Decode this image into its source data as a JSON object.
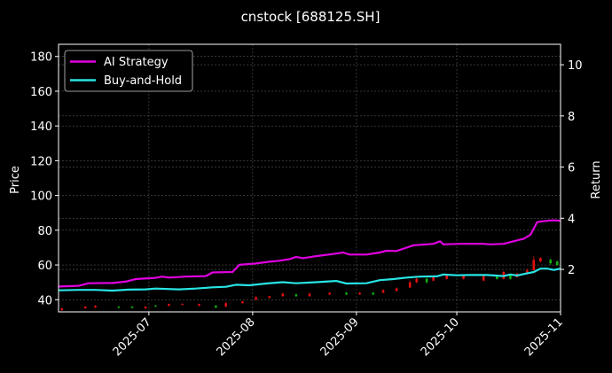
{
  "chart_data": {
    "type": "line",
    "title": "cnstock [688125.SH]",
    "xlabel": "",
    "ylabel": "Price",
    "ylabel_right": "Return",
    "x_tick_labels": [
      "2025-07",
      "2025-08",
      "2025-09",
      "2025-10",
      "2025-11"
    ],
    "x_ticks": [
      "2025-07-01",
      "2025-08-01",
      "2025-09-01",
      "2025-10-01",
      "2025-11-01"
    ],
    "xlim": [
      "2025-06-04",
      "2025-11-01"
    ],
    "ylim": [
      33,
      187
    ],
    "y_ticks": [
      40,
      60,
      80,
      100,
      120,
      140,
      160,
      180
    ],
    "y2lim": [
      0.34,
      10.8
    ],
    "y2_ticks": [
      2,
      4,
      6,
      8,
      10
    ],
    "grid": true,
    "legend_position": "upper-left",
    "colors": {
      "ai": "#e000e0",
      "bh": "#28e4e4",
      "up": "#e01010",
      "down": "#10b010",
      "grid": "#555555"
    },
    "series": [
      {
        "name": "AI Strategy",
        "axis": "right",
        "points": [
          [
            "2025-06-04",
            1.33
          ],
          [
            "2025-06-10",
            1.36
          ],
          [
            "2025-06-13",
            1.46
          ],
          [
            "2025-06-20",
            1.47
          ],
          [
            "2025-06-24",
            1.52
          ],
          [
            "2025-06-27",
            1.62
          ],
          [
            "2025-07-03",
            1.67
          ],
          [
            "2025-07-05",
            1.72
          ],
          [
            "2025-07-07",
            1.68
          ],
          [
            "2025-07-12",
            1.72
          ],
          [
            "2025-07-18",
            1.74
          ],
          [
            "2025-07-20",
            1.88
          ],
          [
            "2025-07-26",
            1.9
          ],
          [
            "2025-07-28",
            2.18
          ],
          [
            "2025-08-02",
            2.23
          ],
          [
            "2025-08-06",
            2.3
          ],
          [
            "2025-08-09",
            2.34
          ],
          [
            "2025-08-12",
            2.4
          ],
          [
            "2025-08-14",
            2.49
          ],
          [
            "2025-08-16",
            2.44
          ],
          [
            "2025-08-20",
            2.52
          ],
          [
            "2025-08-25",
            2.6
          ],
          [
            "2025-08-28",
            2.66
          ],
          [
            "2025-08-30",
            2.58
          ],
          [
            "2025-09-04",
            2.58
          ],
          [
            "2025-09-08",
            2.66
          ],
          [
            "2025-09-10",
            2.73
          ],
          [
            "2025-09-13",
            2.72
          ],
          [
            "2025-09-16",
            2.85
          ],
          [
            "2025-09-18",
            2.94
          ],
          [
            "2025-09-22",
            2.98
          ],
          [
            "2025-09-24",
            3.0
          ],
          [
            "2025-09-26",
            3.1
          ],
          [
            "2025-09-27",
            2.98
          ],
          [
            "2025-10-02",
            3.0
          ],
          [
            "2025-10-09",
            3.0
          ],
          [
            "2025-10-11",
            2.98
          ],
          [
            "2025-10-15",
            3.0
          ],
          [
            "2025-10-18",
            3.1
          ],
          [
            "2025-10-21",
            3.2
          ],
          [
            "2025-10-23",
            3.35
          ],
          [
            "2025-10-25",
            3.85
          ],
          [
            "2025-10-28",
            3.9
          ],
          [
            "2025-10-30",
            3.92
          ],
          [
            "2025-11-01",
            3.9
          ]
        ]
      },
      {
        "name": "Buy-and-Hold",
        "axis": "right",
        "points": [
          [
            "2025-06-04",
            1.18
          ],
          [
            "2025-06-10",
            1.2
          ],
          [
            "2025-06-15",
            1.2
          ],
          [
            "2025-06-20",
            1.17
          ],
          [
            "2025-06-25",
            1.21
          ],
          [
            "2025-06-30",
            1.22
          ],
          [
            "2025-07-03",
            1.25
          ],
          [
            "2025-07-10",
            1.22
          ],
          [
            "2025-07-15",
            1.25
          ],
          [
            "2025-07-20",
            1.3
          ],
          [
            "2025-07-24",
            1.32
          ],
          [
            "2025-07-27",
            1.4
          ],
          [
            "2025-07-31",
            1.38
          ],
          [
            "2025-08-05",
            1.45
          ],
          [
            "2025-08-10",
            1.5
          ],
          [
            "2025-08-14",
            1.46
          ],
          [
            "2025-08-20",
            1.5
          ],
          [
            "2025-08-26",
            1.55
          ],
          [
            "2025-08-29",
            1.45
          ],
          [
            "2025-09-04",
            1.46
          ],
          [
            "2025-09-08",
            1.58
          ],
          [
            "2025-09-12",
            1.62
          ],
          [
            "2025-09-16",
            1.68
          ],
          [
            "2025-09-20",
            1.72
          ],
          [
            "2025-09-25",
            1.73
          ],
          [
            "2025-09-27",
            1.8
          ],
          [
            "2025-10-01",
            1.77
          ],
          [
            "2025-10-05",
            1.78
          ],
          [
            "2025-10-10",
            1.78
          ],
          [
            "2025-10-15",
            1.74
          ],
          [
            "2025-10-17",
            1.8
          ],
          [
            "2025-10-19",
            1.76
          ],
          [
            "2025-10-21",
            1.82
          ],
          [
            "2025-10-24",
            1.9
          ],
          [
            "2025-10-26",
            2.03
          ],
          [
            "2025-10-28",
            2.03
          ],
          [
            "2025-10-30",
            1.98
          ],
          [
            "2025-11-01",
            2.03
          ]
        ]
      }
    ],
    "candles": [
      [
        "2025-06-05",
        34,
        35,
        33.5,
        35.2
      ],
      [
        "2025-06-12",
        35,
        36,
        34.8,
        36.3
      ],
      [
        "2025-06-15",
        35.5,
        36.5,
        35.2,
        36.8
      ],
      [
        "2025-06-22",
        36,
        35.4,
        35,
        36.3
      ],
      [
        "2025-06-26",
        36,
        35.3,
        35,
        36.2
      ],
      [
        "2025-06-30",
        35,
        36,
        34.8,
        36.2
      ],
      [
        "2025-07-03",
        36.5,
        36,
        35.8,
        37
      ],
      [
        "2025-07-07",
        36.5,
        37.5,
        36.2,
        37.8
      ],
      [
        "2025-07-11",
        37,
        37.5,
        36.8,
        38
      ],
      [
        "2025-07-16",
        36.5,
        37.5,
        36.3,
        37.7
      ],
      [
        "2025-07-21",
        36.5,
        35.5,
        35.2,
        37
      ],
      [
        "2025-07-24",
        36,
        38,
        35.8,
        38.5
      ],
      [
        "2025-07-29",
        38,
        39,
        37.8,
        39.3
      ],
      [
        "2025-08-02",
        40,
        41.5,
        39.8,
        42
      ],
      [
        "2025-08-06",
        41,
        42,
        40.8,
        42.3
      ],
      [
        "2025-08-10",
        42,
        43.5,
        41.8,
        44
      ],
      [
        "2025-08-14",
        43,
        42,
        41.6,
        43.5
      ],
      [
        "2025-08-18",
        42,
        43.5,
        41.8,
        44
      ],
      [
        "2025-08-24",
        43,
        44,
        42.8,
        44.3
      ],
      [
        "2025-08-29",
        44,
        43,
        42.6,
        44.5
      ],
      [
        "2025-09-02",
        43,
        44,
        42.8,
        44.3
      ],
      [
        "2025-09-06",
        44,
        43,
        42.6,
        44.5
      ],
      [
        "2025-09-09",
        44,
        45.5,
        43.8,
        46
      ],
      [
        "2025-09-13",
        45,
        46.5,
        44.8,
        47
      ],
      [
        "2025-09-17",
        47,
        50,
        46.6,
        51
      ],
      [
        "2025-09-19",
        50,
        52,
        49.6,
        53
      ],
      [
        "2025-09-22",
        52,
        50,
        49.5,
        52.6
      ],
      [
        "2025-09-24",
        51,
        53,
        50.6,
        54
      ],
      [
        "2025-09-28",
        52,
        54,
        51.6,
        54.5
      ],
      [
        "2025-10-03",
        52,
        54,
        51.6,
        54.5
      ],
      [
        "2025-10-09",
        51,
        54,
        50.6,
        54.5
      ],
      [
        "2025-10-13",
        54,
        52,
        51.6,
        54.5
      ],
      [
        "2025-10-15",
        52,
        56,
        51.6,
        56.5
      ],
      [
        "2025-10-17",
        54,
        52,
        51.6,
        54.5
      ],
      [
        "2025-10-19",
        53,
        55,
        52.6,
        55.5
      ],
      [
        "2025-10-22",
        55,
        57,
        54.6,
        58
      ],
      [
        "2025-10-24",
        57,
        63,
        56.6,
        65
      ],
      [
        "2025-10-26",
        62,
        64,
        61.5,
        64.5
      ],
      [
        "2025-10-29",
        63,
        61,
        60,
        63.5
      ],
      [
        "2025-10-31",
        62,
        60,
        59.5,
        62.5
      ]
    ]
  }
}
